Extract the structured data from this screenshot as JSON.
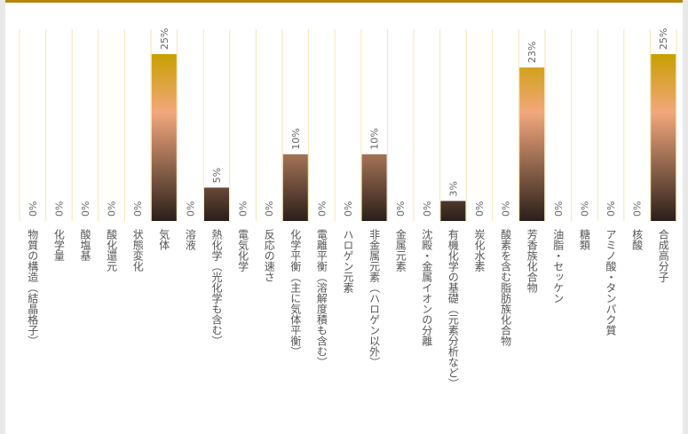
{
  "chart_data": {
    "type": "bar",
    "categories": [
      "物質の構造（結晶格子）",
      "化学量",
      "酸塩基",
      "酸化還元",
      "状態変化",
      "気体",
      "溶液",
      "熱化学（光化学も含む）",
      "電気化学",
      "反応の速さ",
      "化学平衡（主に気体平衡）",
      "電離平衡（溶解度積も含む）",
      "ハロゲン元素",
      "非金属元素（ハロゲン以外）",
      "金属元素",
      "沈殿・金属イオンの分離",
      "有機化学の基礎（元素分析など）",
      "炭化水素",
      "酸素を含む脂肪族化合物",
      "芳香族化合物",
      "油脂・セッケン",
      "糖類",
      "アミノ酸・タンパク質",
      "核酸",
      "合成高分子"
    ],
    "values": [
      0,
      0,
      0,
      0,
      0,
      25,
      0,
      5,
      0,
      0,
      10,
      0,
      0,
      10,
      0,
      0,
      3,
      0,
      0,
      23,
      0,
      0,
      0,
      0,
      25
    ],
    "labels": [
      "0%",
      "0%",
      "0%",
      "0%",
      "0%",
      "25%",
      "0%",
      "5%",
      "0%",
      "0%",
      "10%",
      "0%",
      "0%",
      "10%",
      "0%",
      "0%",
      "3%",
      "0%",
      "0%",
      "23%",
      "0%",
      "0%",
      "0%",
      "0%",
      "25%"
    ],
    "ylim": [
      0,
      25
    ],
    "grid": true,
    "colors": {
      "top": "#c8a000",
      "mid": "#f2a77c",
      "bottom": "#2a1f1a",
      "grid": "#f3e6b3",
      "frame": "#b8860b"
    }
  }
}
